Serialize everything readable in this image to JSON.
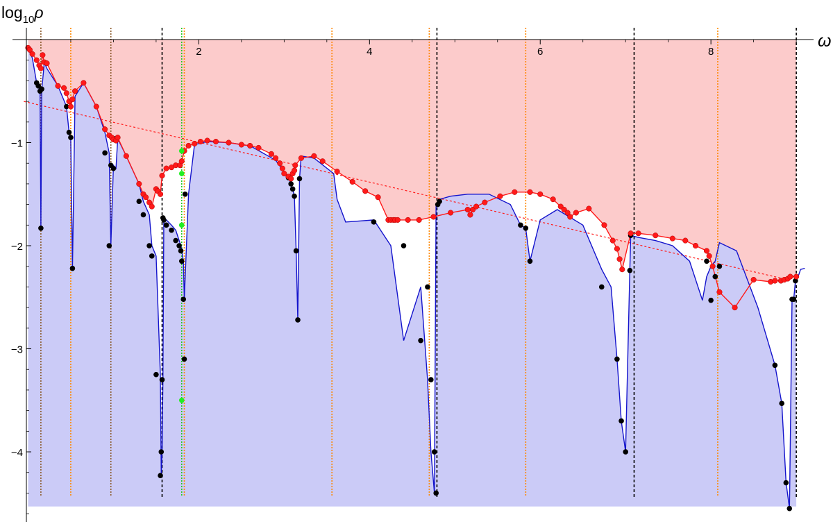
{
  "chart_data": {
    "type": "line",
    "title": "",
    "xlabel": "ω",
    "ylabel_base": "log",
    "ylabel_sub": "10",
    "ylabel_var": "ρ",
    "xlim": [
      -0.02,
      9.3
    ],
    "ylim": [
      -4.7,
      0
    ],
    "x_ticks": [
      {
        "value": 2,
        "label": "2"
      },
      {
        "value": 4,
        "label": "4"
      },
      {
        "value": 6,
        "label": "6"
      },
      {
        "value": 8,
        "label": "8"
      }
    ],
    "y_ticks": [
      {
        "value": -1,
        "label": "−1"
      },
      {
        "value": -2,
        "label": "−2"
      },
      {
        "value": -3,
        "label": "−3"
      },
      {
        "value": -4,
        "label": "−4"
      }
    ],
    "region_floor": -4.53,
    "region_ceiling": 0,
    "region_x_end": 9.0,
    "colors": {
      "upper_fill": "#fccbcb",
      "lower_fill": "#cbcbf7",
      "upper_series": "#ff1a1a",
      "lower_series": "#1414cc",
      "black_markers": "#000000",
      "green_markers": "#22ee22",
      "trend": "#ff1a1a",
      "black_vline": "#000000",
      "orange_vline": "#ff8800",
      "brown_vline": "#8b5a2b",
      "green_vline": "#22cc22"
    },
    "trend_line": {
      "x": [
        -0.05,
        8.9
      ],
      "y": [
        -0.6,
        -2.33
      ]
    },
    "vertical_lines": [
      {
        "x": 0.15,
        "style": "brown"
      },
      {
        "x": 0.5,
        "style": "orange"
      },
      {
        "x": 0.97,
        "style": "brown"
      },
      {
        "x": 1.57,
        "style": "black"
      },
      {
        "x": 1.8,
        "style": "green"
      },
      {
        "x": 1.83,
        "style": "orange"
      },
      {
        "x": 3.56,
        "style": "orange"
      },
      {
        "x": 4.7,
        "style": "orange"
      },
      {
        "x": 4.79,
        "style": "black"
      },
      {
        "x": 5.83,
        "style": "orange"
      },
      {
        "x": 7.1,
        "style": "black"
      },
      {
        "x": 8.08,
        "style": "orange"
      },
      {
        "x": 9.0,
        "style": "black"
      }
    ],
    "upper_series": {
      "x": [
        0.0,
        0.02,
        0.05,
        0.1,
        0.13,
        0.15,
        0.17,
        0.19,
        0.22,
        0.35,
        0.42,
        0.45,
        0.48,
        0.5,
        0.52,
        0.55,
        0.65,
        0.8,
        0.9,
        0.95,
        0.98,
        1.0,
        1.03,
        1.05,
        1.15,
        1.3,
        1.35,
        1.38,
        1.42,
        1.45,
        1.5,
        1.52,
        1.55,
        1.57,
        1.62,
        1.68,
        1.73,
        1.78,
        1.8,
        1.83,
        1.88,
        1.95,
        2.02,
        2.1,
        2.2,
        2.35,
        2.5,
        2.6,
        2.7,
        2.85,
        2.9,
        2.95,
        2.98,
        3.0,
        3.05,
        3.08,
        3.1,
        3.12,
        3.13,
        3.2,
        3.35,
        3.45,
        3.62,
        3.8,
        3.95,
        4.1,
        4.22,
        4.25,
        4.28,
        4.3,
        4.33,
        4.45,
        4.58,
        4.75,
        4.95,
        5.15,
        5.18,
        5.21,
        5.25,
        5.35,
        5.53,
        5.7,
        5.88,
        6.0,
        6.15,
        6.24,
        6.28,
        6.32,
        6.35,
        6.42,
        6.57,
        6.75,
        6.85,
        6.9,
        6.93,
        6.96,
        7.06,
        7.15,
        7.35,
        7.55,
        7.7,
        7.82,
        7.95,
        7.98,
        8.02,
        8.1,
        8.28,
        8.5,
        8.7,
        8.75,
        8.82,
        8.86,
        8.9,
        8.93,
        9.0
      ],
      "y": [
        -0.08,
        -0.1,
        -0.14,
        -0.2,
        -0.25,
        -0.28,
        -0.15,
        -0.22,
        -0.23,
        -0.45,
        -0.47,
        -0.52,
        -0.6,
        -0.65,
        -0.58,
        -0.5,
        -0.42,
        -0.65,
        -0.87,
        -0.93,
        -0.95,
        -0.97,
        -0.98,
        -0.95,
        -1.13,
        -1.4,
        -1.5,
        -1.53,
        -1.58,
        -1.62,
        -1.45,
        -1.47,
        -1.5,
        -1.32,
        -1.25,
        -1.24,
        -1.22,
        -1.22,
        -1.18,
        -1.08,
        -1.03,
        -1.01,
        -0.99,
        -0.98,
        -0.99,
        -1.0,
        -1.02,
        -1.03,
        -1.05,
        -1.11,
        -1.15,
        -1.2,
        -1.25,
        -1.3,
        -1.33,
        -1.35,
        -1.3,
        -1.27,
        -1.22,
        -1.15,
        -1.13,
        -1.18,
        -1.28,
        -1.38,
        -1.47,
        -1.53,
        -1.75,
        -1.75,
        -1.75,
        -1.75,
        -1.75,
        -1.75,
        -1.75,
        -1.72,
        -1.68,
        -1.65,
        -1.7,
        -1.65,
        -1.62,
        -1.58,
        -1.52,
        -1.48,
        -1.48,
        -1.5,
        -1.55,
        -1.62,
        -1.65,
        -1.68,
        -1.72,
        -1.68,
        -1.64,
        -1.8,
        -1.95,
        -2.03,
        -2.13,
        -2.23,
        -1.88,
        -1.88,
        -1.9,
        -1.93,
        -1.95,
        -2.0,
        -2.05,
        -2.1,
        -2.2,
        -2.45,
        -2.6,
        -2.33,
        -2.35,
        -2.34,
        -2.34,
        -2.33,
        -2.32,
        -2.3,
        -2.3
      ]
    },
    "lower_series": {
      "x": [
        0.0,
        0.02,
        0.05,
        0.1,
        0.12,
        0.14,
        0.15,
        0.16,
        0.17,
        0.19,
        0.22,
        0.35,
        0.45,
        0.48,
        0.5,
        0.52,
        0.55,
        0.65,
        0.8,
        0.9,
        0.95,
        0.97,
        1.0,
        1.03,
        1.05,
        1.15,
        1.3,
        1.35,
        1.42,
        1.45,
        1.5,
        1.55,
        1.56,
        1.57,
        1.58,
        1.59,
        1.62,
        1.68,
        1.73,
        1.77,
        1.79,
        1.8,
        1.82,
        1.83,
        1.88,
        1.95,
        2.1,
        2.35,
        2.6,
        2.9,
        3.05,
        3.08,
        3.1,
        3.12,
        3.14,
        3.16,
        3.18,
        3.2,
        3.35,
        3.58,
        3.62,
        3.72,
        4.05,
        4.25,
        4.4,
        4.6,
        4.68,
        4.72,
        4.76,
        4.78,
        4.8,
        4.82,
        4.95,
        5.15,
        5.4,
        5.65,
        5.77,
        5.83,
        5.88,
        6.0,
        6.2,
        6.5,
        6.72,
        6.83,
        6.9,
        6.95,
        7.0,
        7.05,
        7.06,
        7.15,
        7.35,
        7.55,
        7.75,
        7.9,
        7.95,
        8.0,
        8.05,
        8.1,
        8.3,
        8.55,
        8.75,
        8.83,
        8.88,
        8.92,
        8.95,
        8.97,
        8.99,
        9.0,
        9.03,
        9.05,
        9.1
      ],
      "y": [
        -0.08,
        -0.12,
        -0.18,
        -0.42,
        -0.45,
        -0.5,
        -1.83,
        -0.48,
        -0.4,
        -0.22,
        -0.28,
        -0.45,
        -0.65,
        -0.9,
        -0.95,
        -2.22,
        -0.55,
        -0.42,
        -0.65,
        -0.9,
        -1.1,
        -2.0,
        -1.22,
        -1.25,
        -0.96,
        -1.13,
        -1.4,
        -1.57,
        -1.7,
        -2.0,
        -2.1,
        -3.25,
        -4.23,
        -4.0,
        -3.3,
        -1.73,
        -1.75,
        -1.8,
        -1.85,
        -1.95,
        -2.0,
        -2.05,
        -2.15,
        -2.52,
        -1.5,
        -1.02,
        -0.99,
        -1.0,
        -1.03,
        -1.17,
        -1.34,
        -1.4,
        -1.45,
        -1.52,
        -2.05,
        -2.72,
        -1.35,
        -1.13,
        -1.15,
        -1.3,
        -1.55,
        -1.77,
        -1.75,
        -2.0,
        -2.92,
        -2.4,
        -3.3,
        -4.0,
        -4.4,
        -1.6,
        -1.57,
        -1.55,
        -1.52,
        -1.5,
        -1.5,
        -1.6,
        -1.8,
        -1.83,
        -2.15,
        -1.75,
        -1.65,
        -1.8,
        -2.23,
        -2.4,
        -3.1,
        -3.7,
        -4.0,
        -2.24,
        -1.9,
        -1.92,
        -1.95,
        -2.0,
        -2.15,
        -2.53,
        -2.3,
        -2.2,
        -2.15,
        -1.97,
        -2.05,
        -2.6,
        -3.16,
        -3.53,
        -4.3,
        -4.55,
        -2.52,
        -2.52,
        -2.34,
        -2.32,
        -2.28,
        -2.23,
        -2.22
      ]
    },
    "black_markers": {
      "x": [
        0.1,
        0.12,
        0.14,
        0.15,
        0.16,
        0.45,
        0.48,
        0.5,
        0.52,
        0.9,
        0.95,
        0.97,
        1.0,
        1.03,
        1.3,
        1.35,
        1.42,
        1.45,
        1.5,
        1.55,
        1.56,
        1.57,
        1.58,
        1.59,
        1.62,
        1.68,
        1.73,
        1.77,
        1.79,
        1.8,
        1.82,
        1.83,
        1.84,
        3.05,
        3.08,
        3.1,
        3.12,
        3.14,
        3.16,
        3.18,
        4.05,
        4.4,
        4.6,
        4.68,
        4.72,
        4.76,
        4.78,
        4.8,
        4.82,
        5.77,
        5.83,
        5.88,
        6.72,
        6.9,
        6.95,
        7.0,
        7.05,
        7.06,
        7.95,
        8.0,
        8.05,
        8.1,
        8.75,
        8.83,
        8.88,
        8.92,
        8.95,
        8.97,
        8.99,
        9.0
      ],
      "y": [
        -0.42,
        -0.45,
        -0.5,
        -1.83,
        -0.48,
        -0.65,
        -0.9,
        -0.95,
        -2.22,
        -1.1,
        -2.0,
        -1.22,
        -1.25,
        -0.96,
        -1.57,
        -1.7,
        -2.0,
        -2.1,
        -3.25,
        -4.23,
        -4.0,
        -3.3,
        -1.73,
        -1.75,
        -1.8,
        -1.85,
        -1.95,
        -2.0,
        -2.05,
        -2.15,
        -2.52,
        -3.1,
        -1.5,
        -1.34,
        -1.4,
        -1.45,
        -1.52,
        -2.05,
        -2.72,
        -1.35,
        -1.77,
        -2.0,
        -2.92,
        -2.4,
        -3.3,
        -4.0,
        -4.4,
        -1.6,
        -1.57,
        -1.8,
        -1.83,
        -2.15,
        -2.4,
        -3.1,
        -3.7,
        -4.0,
        -2.24,
        -1.9,
        -2.15,
        -2.53,
        -2.3,
        -2.2,
        -3.16,
        -3.53,
        -4.3,
        -4.55,
        -2.52,
        -2.52,
        -2.34,
        -2.3
      ]
    },
    "green_markers": {
      "x": [
        1.8,
        1.8,
        1.8,
        1.8
      ],
      "y": [
        -1.08,
        -1.3,
        -1.8,
        -3.5
      ]
    }
  }
}
